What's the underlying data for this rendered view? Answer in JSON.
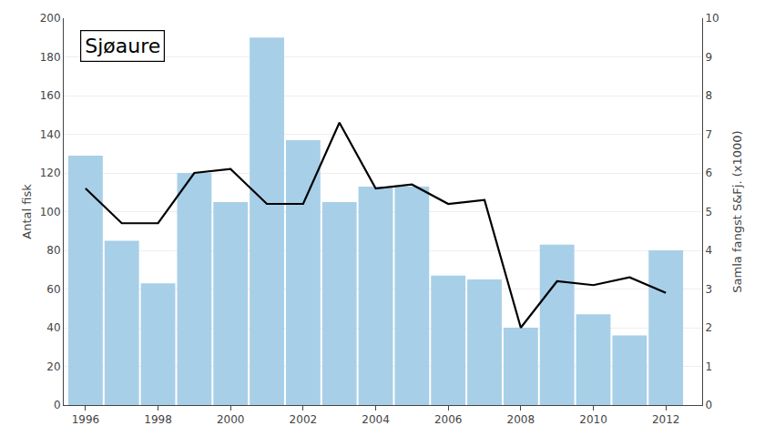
{
  "chart_data": {
    "type": "bar",
    "title": "Sjøaure",
    "x": [
      1996,
      1997,
      1998,
      1999,
      2000,
      2001,
      2002,
      2003,
      2004,
      2005,
      2006,
      2007,
      2008,
      2009,
      2010,
      2011,
      2012
    ],
    "series": [
      {
        "type": "bar",
        "color": "#a8cfe8",
        "values": [
          129,
          85,
          63,
          120,
          105,
          190,
          137,
          105,
          113,
          113,
          67,
          65,
          40,
          83,
          47,
          36,
          80
        ]
      },
      {
        "type": "line",
        "color": "#000000",
        "axis": "y2",
        "values": [
          5.6,
          4.7,
          4.7,
          6.0,
          6.1,
          5.2,
          5.2,
          7.3,
          5.6,
          5.7,
          5.2,
          5.3,
          2.0,
          3.2,
          3.1,
          3.3,
          2.9
        ]
      }
    ],
    "ylabel": "Antal fisk",
    "y2label": "Samla fangst S&Fj. (x1000)",
    "xlim": [
      1995.4,
      2013.0
    ],
    "xticks": [
      1996,
      1998,
      2000,
      2002,
      2004,
      2006,
      2008,
      2010,
      2012
    ],
    "ylim": [
      0,
      200
    ],
    "yticks": [
      0,
      20,
      40,
      60,
      80,
      100,
      120,
      140,
      160,
      180,
      200
    ],
    "y2lim": [
      0,
      10
    ],
    "y2ticks": [
      0,
      1,
      2,
      3,
      4,
      5,
      6,
      7,
      8,
      9,
      10
    ],
    "grid": true
  }
}
